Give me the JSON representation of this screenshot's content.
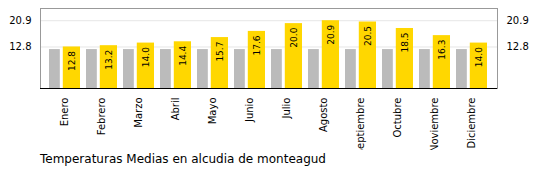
{
  "chart_data": {
    "type": "bar",
    "title": "Temperaturas Medias en alcudia de monteagud",
    "categories": [
      "Enero",
      "Febrero",
      "Marzo",
      "Abril",
      "Mayo",
      "Junio",
      "Julio",
      "Agosto",
      "Septiembre",
      "Octubre",
      "Noviembre",
      "Diciembre"
    ],
    "series": [
      {
        "color": "#BBBBBB",
        "values": [
          12.0,
          12.0,
          12.0,
          12.0,
          12.0,
          12.0,
          12.0,
          12.0,
          12.0,
          12.0,
          12.0,
          12.0
        ]
      },
      {
        "color": "#FFD700",
        "values": [
          12.8,
          13.2,
          14.0,
          14.4,
          15.7,
          17.6,
          20.0,
          20.9,
          20.5,
          18.5,
          16.3,
          14.0
        ],
        "value_labels": [
          "12.8",
          "13.2",
          "14.0",
          "14.4",
          "15.7",
          "17.6",
          "20.0",
          "20.9",
          "20.5",
          "18.5",
          "16.3",
          "14.0"
        ]
      }
    ],
    "data_labels": true,
    "ylim": [
      0,
      24.662
    ],
    "yticks": [
      12.8,
      20.9
    ],
    "grid": true
  }
}
